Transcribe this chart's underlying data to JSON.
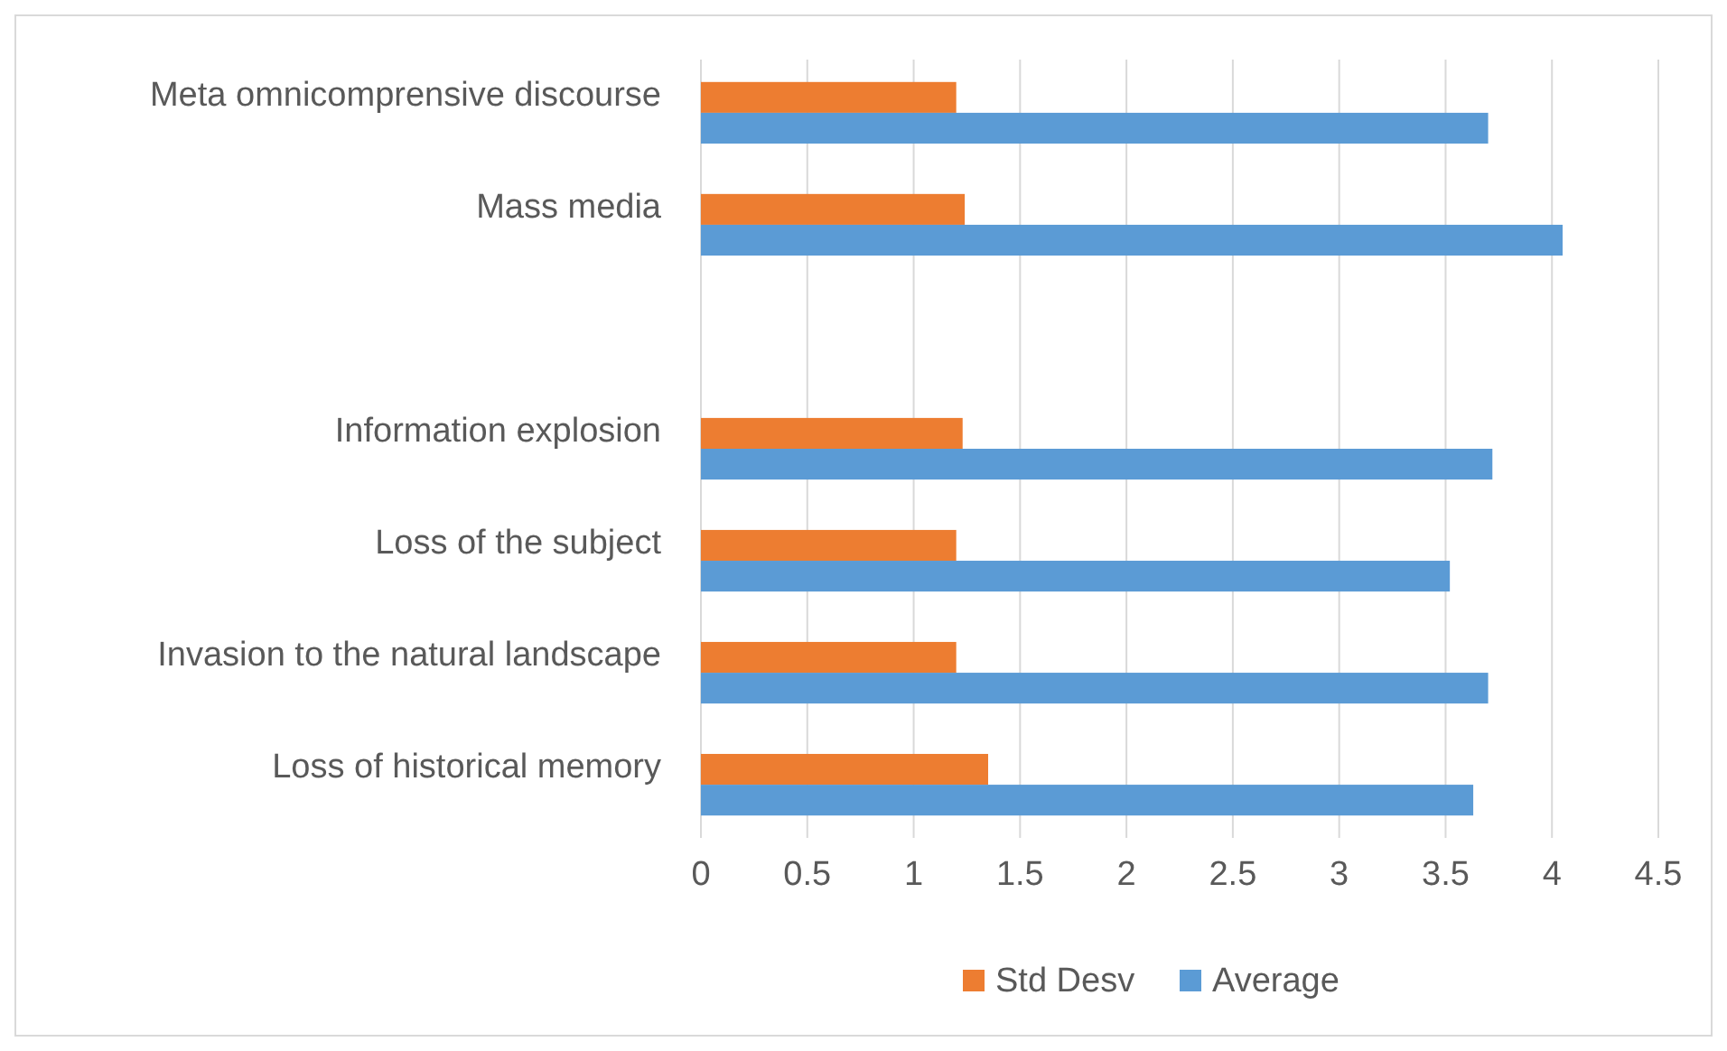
{
  "chart_data": {
    "type": "bar",
    "orientation": "horizontal",
    "categories": [
      "Meta omnicomprensive discourse",
      "Mass media",
      null,
      "Information explosion",
      "Loss of the subject",
      "Invasion to the natural landscape",
      "Loss of historical memory"
    ],
    "series": [
      {
        "name": "Std Desv",
        "color": "#ed7d31",
        "values": [
          1.2,
          1.24,
          null,
          1.23,
          1.2,
          1.2,
          1.35
        ]
      },
      {
        "name": "Average",
        "color": "#5b9bd5",
        "values": [
          3.7,
          4.05,
          null,
          3.72,
          3.52,
          3.7,
          3.63
        ]
      }
    ],
    "xlim": [
      0,
      4.5
    ],
    "xticks": [
      0,
      0.5,
      1,
      1.5,
      2,
      2.5,
      3,
      3.5,
      4,
      4.5
    ],
    "grid": "x",
    "legend": "bottom"
  }
}
